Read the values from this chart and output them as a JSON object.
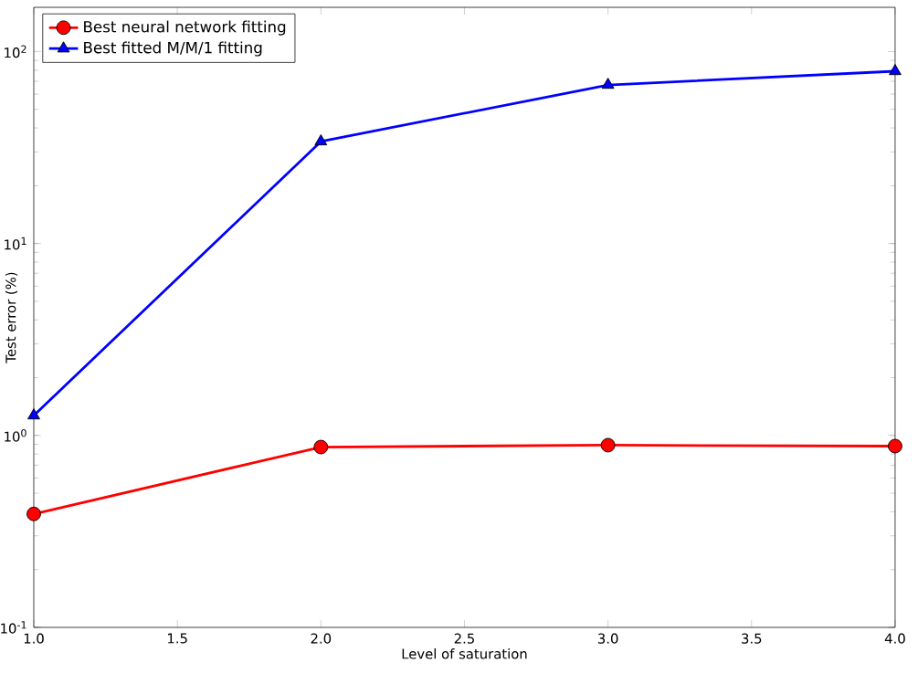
{
  "chart_data": {
    "type": "line",
    "xlabel": "Level of saturation",
    "ylabel": "Test error (%)",
    "x": [
      1,
      2,
      3,
      4
    ],
    "series": [
      {
        "name": "Best neural network fitting",
        "color": "#ff0000",
        "marker": "circle",
        "values": [
          0.39,
          0.87,
          0.89,
          0.88
        ]
      },
      {
        "name": "Best fitted M/M/1 fitting",
        "color": "#0000ff",
        "marker": "triangle",
        "values": [
          1.27,
          34,
          67,
          79
        ]
      }
    ],
    "log": "y",
    "xlim": [
      1,
      4
    ],
    "ylim": [
      0.1,
      170
    ],
    "xticks": [
      {
        "value": 1,
        "label": "1.0"
      },
      {
        "value": 1.5,
        "label": "1.5"
      },
      {
        "value": 2,
        "label": "2.0"
      },
      {
        "value": 2.5,
        "label": "2.5"
      },
      {
        "value": 3,
        "label": "3.0"
      },
      {
        "value": 3.5,
        "label": "3.5"
      },
      {
        "value": 4,
        "label": "4.0"
      }
    ],
    "yticks": [
      {
        "value": 0.1,
        "label": "10$^{-1}$"
      },
      {
        "value": 1,
        "label": "10$^{0}$"
      },
      {
        "value": 10,
        "label": "10$^{1}$"
      },
      {
        "value": 100,
        "label": "10$^{2}$"
      }
    ],
    "legend": "top left",
    "line_style": "solid"
  }
}
